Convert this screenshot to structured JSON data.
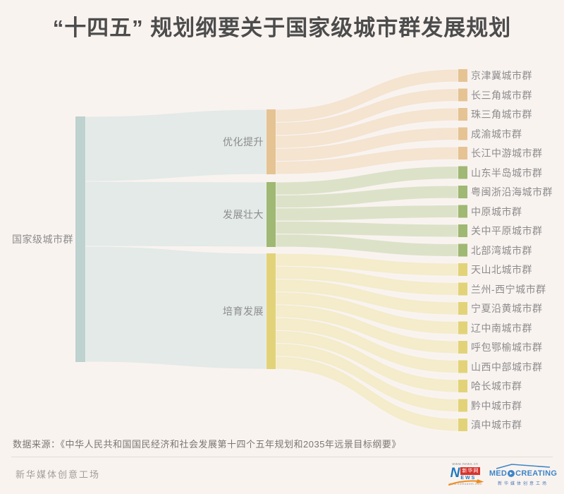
{
  "title": "“十四五” 规划纲要关于国家级城市群发展规划",
  "chart_data": {
    "type": "sankey",
    "root": "国家级城市群",
    "root_node_color": "#bed2d0",
    "root_flow_color": "#e3eae8",
    "link_value_per_cluster": 1,
    "groups": [
      {
        "name": "优化提升",
        "node_color": "#e5c393",
        "flow_color": "#f4e4d0",
        "clusters": [
          "京津冀城市群",
          "长三角城市群",
          "珠三角城市群",
          "成渝城市群",
          "长江中游城市群"
        ]
      },
      {
        "name": "发展壮大",
        "node_color": "#9fb873",
        "flow_color": "#dce2c8",
        "clusters": [
          "山东半岛城市群",
          "粤闽浙沿海城市群",
          "中原城市群",
          "关中平原城市群",
          "北部湾城市群"
        ]
      },
      {
        "name": "培育发展",
        "node_color": "#e2d378",
        "flow_color": "#f4ecca",
        "clusters": [
          "天山北城市群",
          "兰州-西宁城市群",
          "宁夏沿黄城市群",
          "辽中南城市群",
          "呼包鄂榆城市群",
          "山西中部城市群",
          "哈长城市群",
          "黔中城市群",
          "滇中城市群"
        ]
      }
    ]
  },
  "source_note": "数据来源：《中华人民共和国国民经济和社会发展第十四个五年规划和2035年远景目标纲要》",
  "footer": {
    "brand_text": "新华媒体创意工场",
    "logo_xinhuanet": {
      "url_top": "www.news.cn",
      "n_letter": "N",
      "box_text": "新华网",
      "news_rest": "EWS",
      "url_bottom": "www.xinhuanet.com"
    },
    "logo_medcreating": {
      "wordmark_pre": "MED",
      "wordmark_post": "CREATING",
      "subtext": "新华媒体创意工场"
    }
  }
}
